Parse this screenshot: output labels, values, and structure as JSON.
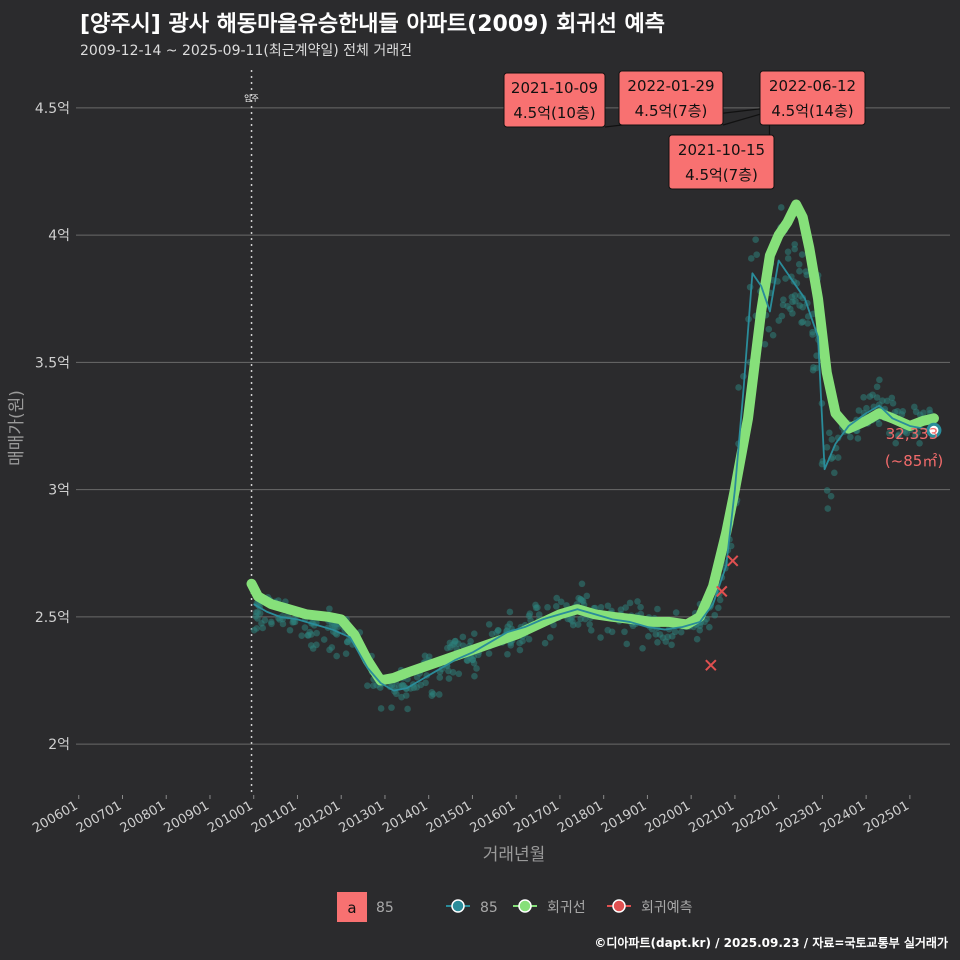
{
  "header": {
    "title": "[양주시] 광사 해동마을유승한내들 아파트(2009) 회귀선 예측",
    "subtitle": "2009-12-14 ~ 2025-09-11(최근계약일) 전체 거래건"
  },
  "footer": {
    "credit": "©디아파트(dapt.kr) / 2025.09.23 / 자료=국토교통부 실거래가"
  },
  "colors": {
    "background": "#2b2b2d",
    "grid": "#6a6a6a",
    "scatter": "#2d7f7a",
    "trend85": "#2a8c9a",
    "regression": "#86e07a",
    "forecast": "#e05050",
    "label_fill": "#f87171",
    "marker_text": "#f26b6b"
  },
  "chart_data": {
    "type": "line",
    "xlabel": "거래년월",
    "ylabel": "매매가(원)",
    "x_ticks": [
      "200601",
      "200701",
      "200801",
      "200901",
      "201001",
      "201101",
      "201201",
      "201301",
      "201401",
      "201501",
      "201601",
      "201701",
      "201801",
      "201901",
      "202001",
      "202101",
      "202201",
      "202301",
      "202401",
      "202501"
    ],
    "x_range": [
      2005.8,
      2026.1
    ],
    "y_ticks": [
      {
        "value": 2.0,
        "label": "2억"
      },
      {
        "value": 2.5,
        "label": "2.5억"
      },
      {
        "value": 3.0,
        "label": "3억"
      },
      {
        "value": 3.5,
        "label": "3.5억"
      },
      {
        "value": 4.0,
        "label": "4억"
      },
      {
        "value": 4.5,
        "label": "4.5억"
      }
    ],
    "y_range": [
      1.8,
      4.68
    ],
    "vline": {
      "x": 2009.95,
      "label": "입주"
    },
    "regression_series": {
      "name": "회귀선",
      "x": [
        2009.95,
        2010.1,
        2010.4,
        2010.8,
        2011.2,
        2011.7,
        2012.0,
        2012.3,
        2012.6,
        2012.9,
        2013.2,
        2013.5,
        2014.0,
        2014.5,
        2015.0,
        2015.5,
        2016.0,
        2016.5,
        2017.0,
        2017.4,
        2017.8,
        2018.2,
        2018.7,
        2019.1,
        2019.5,
        2019.9,
        2020.2,
        2020.5,
        2020.8,
        2021.0,
        2021.3,
        2021.6,
        2021.8,
        2022.0,
        2022.2,
        2022.4,
        2022.55,
        2022.7,
        2022.9,
        2023.1,
        2023.3,
        2023.6,
        2024.0,
        2024.3,
        2024.6,
        2025.0,
        2025.3,
        2025.55
      ],
      "y": [
        2.63,
        2.58,
        2.55,
        2.53,
        2.51,
        2.5,
        2.49,
        2.43,
        2.33,
        2.25,
        2.26,
        2.28,
        2.31,
        2.34,
        2.37,
        2.4,
        2.43,
        2.47,
        2.51,
        2.53,
        2.51,
        2.5,
        2.49,
        2.48,
        2.48,
        2.47,
        2.5,
        2.62,
        2.83,
        3.0,
        3.28,
        3.7,
        3.92,
        4.0,
        4.05,
        4.12,
        4.07,
        3.95,
        3.75,
        3.46,
        3.3,
        3.24,
        3.27,
        3.3,
        3.28,
        3.25,
        3.27,
        3.28
      ]
    },
    "series_85": {
      "name": "85",
      "x": [
        2010.0,
        2010.3,
        2010.6,
        2011.0,
        2011.4,
        2011.8,
        2012.2,
        2012.6,
        2012.9,
        2013.2,
        2013.5,
        2013.8,
        2014.2,
        2014.6,
        2015.0,
        2015.4,
        2015.8,
        2016.2,
        2016.6,
        2017.0,
        2017.4,
        2017.8,
        2018.2,
        2018.6,
        2019.0,
        2019.4,
        2019.8,
        2020.2,
        2020.5,
        2020.8,
        2021.0,
        2021.2,
        2021.4,
        2021.6,
        2021.8,
        2022.0,
        2022.2,
        2022.4,
        2022.6,
        2022.9,
        2023.05,
        2023.3,
        2023.6,
        2024.0,
        2024.3,
        2024.6,
        2025.0,
        2025.3,
        2025.6
      ],
      "y": [
        2.55,
        2.52,
        2.5,
        2.49,
        2.47,
        2.45,
        2.42,
        2.3,
        2.24,
        2.21,
        2.22,
        2.25,
        2.29,
        2.33,
        2.36,
        2.4,
        2.44,
        2.46,
        2.49,
        2.51,
        2.53,
        2.51,
        2.49,
        2.48,
        2.46,
        2.45,
        2.46,
        2.48,
        2.55,
        2.7,
        3.0,
        3.4,
        3.85,
        3.8,
        3.7,
        3.9,
        3.85,
        3.8,
        3.75,
        3.6,
        3.08,
        3.18,
        3.25,
        3.3,
        3.33,
        3.28,
        3.25,
        3.24,
        3.23
      ]
    },
    "forecast_points": [
      {
        "x": 2020.45,
        "y": 2.31
      },
      {
        "x": 2020.7,
        "y": 2.6
      },
      {
        "x": 2020.95,
        "y": 2.72
      }
    ],
    "end_marker": {
      "x": 2025.55,
      "y": 3.233,
      "value": "32,333",
      "size": "(~85㎡)"
    },
    "annotations": [
      {
        "date": "2021-10-09",
        "price": "4.5억(10층)",
        "x": 2021.77,
        "y": 4.5
      },
      {
        "date": "2022-01-29",
        "price": "4.5억(7층)",
        "x": 2022.08,
        "y": 4.5
      },
      {
        "date": "2021-10-15",
        "price": "4.5억(7층)",
        "x": 2021.79,
        "y": 4.5
      },
      {
        "date": "2022-06-12",
        "price": "4.5억(14층)",
        "x": 2022.45,
        "y": 4.5
      }
    ],
    "legend": [
      {
        "key": "a",
        "name": "85",
        "type": "box"
      },
      {
        "name": "85",
        "type": "line-85"
      },
      {
        "name": "회귀선",
        "type": "line-regression"
      },
      {
        "name": "회귀예측",
        "type": "line-forecast"
      }
    ]
  }
}
